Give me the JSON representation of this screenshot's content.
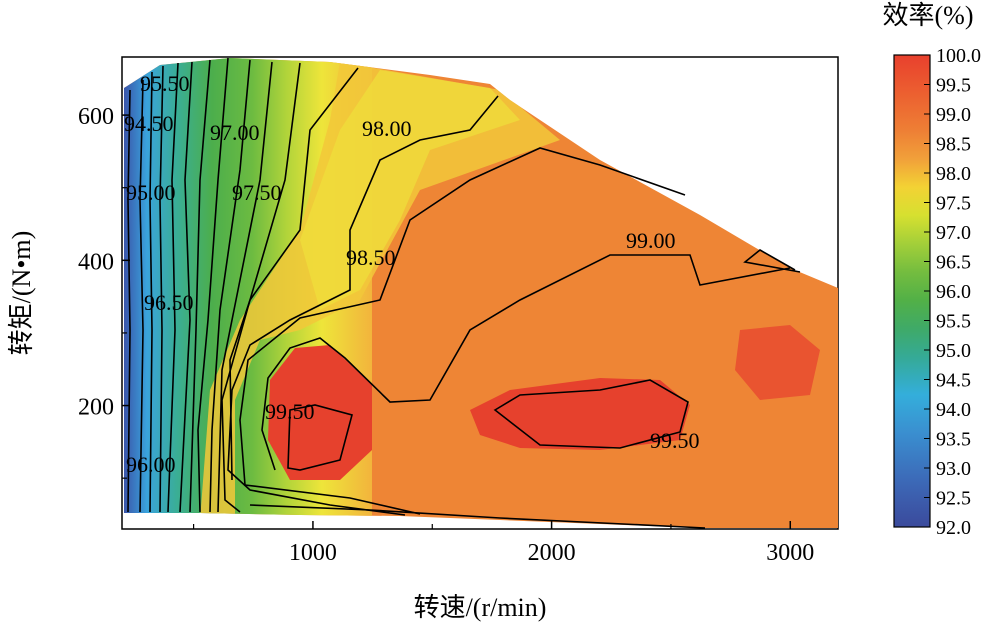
{
  "chart_data": {
    "type": "contour",
    "title": "",
    "xlabel": "转速/(r/min)",
    "ylabel": "转矩/(N•m)",
    "colorbar_title": "效率(%)",
    "xlim": [
      200,
      3200
    ],
    "ylim": [
      30,
      680
    ],
    "x_ticks": [
      1000,
      2000,
      3000
    ],
    "y_ticks": [
      200,
      400,
      600
    ],
    "colorbar_range": [
      92.0,
      100.0
    ],
    "colorbar_ticks": [
      "100.0",
      "99.5",
      "99.0",
      "98.5",
      "98.0",
      "97.5",
      "97.0",
      "96.5",
      "96.0",
      "95.5",
      "95.0",
      "94.5",
      "94.0",
      "93.5",
      "93.0",
      "92.5",
      "92.0"
    ],
    "contour_labels": [
      "95.50",
      "94.50",
      "97.00",
      "98.00",
      "95.00",
      "97.50",
      "99.00",
      "98.50",
      "96.50",
      "99.50",
      "99.50",
      "96.00"
    ],
    "colors": {
      "low": "#3a4aa0",
      "mid_low": "#33b3d6",
      "mid": "#62b645",
      "mid_high": "#f0e832",
      "high": "#ee8735",
      "max": "#e8402d"
    }
  }
}
